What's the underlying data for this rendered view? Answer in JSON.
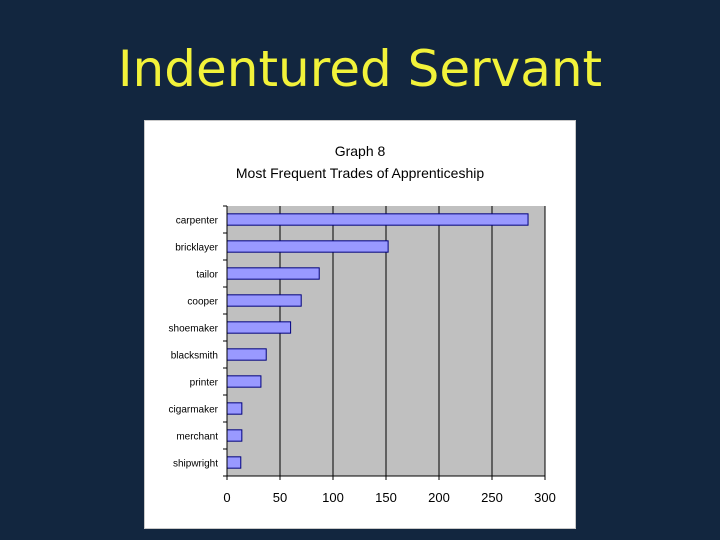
{
  "slide": {
    "title": "Indentured Servant"
  },
  "colors": {
    "background": "#12263f",
    "title": "#f2f23a",
    "plot_area": "#c0c0c0",
    "bar_fill": "#9999ff",
    "bar_stroke": "#000080"
  },
  "chart_data": {
    "type": "bar",
    "orientation": "horizontal",
    "title": "Graph 8",
    "subtitle": "Most Frequent Trades of Apprenticeship",
    "xlabel": "",
    "ylabel": "",
    "categories": [
      "carpenter",
      "bricklayer",
      "tailor",
      "cooper",
      "shoemaker",
      "blacksmith",
      "printer",
      "cigarmaker",
      "merchant",
      "shipwright"
    ],
    "values": [
      284,
      152,
      87,
      70,
      60,
      37,
      32,
      14,
      14,
      13
    ],
    "xlim": [
      0,
      300
    ],
    "xticks": [
      0,
      50,
      100,
      150,
      200,
      250,
      300
    ],
    "grid": true,
    "legend": false
  }
}
